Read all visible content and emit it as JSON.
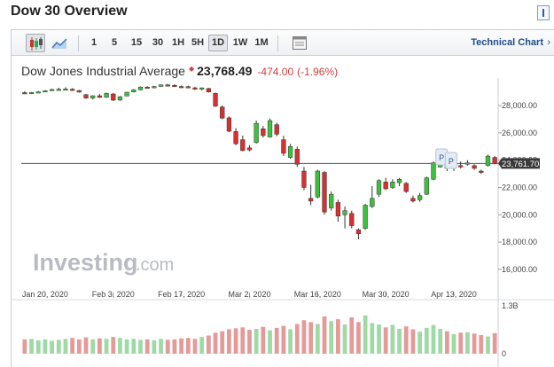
{
  "header": {
    "title": "Dow 30 Overview"
  },
  "toolbar": {
    "intervals": [
      "1",
      "5",
      "15",
      "30",
      "1H",
      "5H",
      "1D",
      "1W",
      "1M"
    ],
    "active_interval": "1D",
    "link_label": "Technical Chart"
  },
  "quote": {
    "name": "Dow Jones Industrial Average",
    "price": "23,768.49",
    "change": "-474.00",
    "change_pct": "(-1.96%)"
  },
  "watermark": {
    "brand": "Investing",
    "suffix": ".com"
  },
  "current_price_label": "23,761.70",
  "markers": [
    "P",
    "P"
  ],
  "colors": {
    "up": "#3cc13c",
    "down": "#d83030",
    "vol_up": "#9fd9a6",
    "vol_down": "#e39a98",
    "price_tag": "#3a3a3a",
    "accent": "#1d4d8b"
  },
  "chart_data": {
    "type": "candlestick",
    "y_ticks": [
      28000,
      26000,
      24000,
      22000,
      20000,
      18000,
      16000
    ],
    "y_tick_labels": [
      "28,000.00",
      "26,000.00",
      "24,000.00",
      "22,000.00",
      "20,000.00",
      "18,000.00",
      "16,000.00"
    ],
    "ylim": [
      14300,
      29500
    ],
    "x_tick_labels": [
      "Jan 20, 2020",
      "Feb 3, 2020",
      "Feb 17, 2020",
      "Mar 2, 2020",
      "Mar 16, 2020",
      "Mar 30, 2020",
      "Apr 13, 2020"
    ],
    "x_tick_index": [
      3,
      13,
      23,
      33,
      43,
      53,
      63
    ],
    "current_value": 23761.7,
    "volume_axis_labels": [
      "1.3B",
      "0"
    ],
    "volume_max": 1300000000,
    "candles": [
      {
        "o": 28950,
        "h": 29050,
        "l": 28880,
        "c": 28930
      },
      {
        "o": 28900,
        "h": 29000,
        "l": 28860,
        "c": 28960
      },
      {
        "o": 28980,
        "h": 29070,
        "l": 28930,
        "c": 29010
      },
      {
        "o": 29050,
        "h": 29130,
        "l": 29000,
        "c": 29090
      },
      {
        "o": 29150,
        "h": 29240,
        "l": 29110,
        "c": 29180
      },
      {
        "o": 29180,
        "h": 29300,
        "l": 29140,
        "c": 29200
      },
      {
        "o": 29200,
        "h": 29340,
        "l": 29150,
        "c": 29220
      },
      {
        "o": 29200,
        "h": 29280,
        "l": 29080,
        "c": 29120
      },
      {
        "o": 29100,
        "h": 29150,
        "l": 28950,
        "c": 28990
      },
      {
        "o": 28800,
        "h": 28850,
        "l": 28500,
        "c": 28550
      },
      {
        "o": 28550,
        "h": 28750,
        "l": 28450,
        "c": 28720
      },
      {
        "o": 28720,
        "h": 28840,
        "l": 28560,
        "c": 28600
      },
      {
        "o": 28600,
        "h": 28950,
        "l": 28580,
        "c": 28900
      },
      {
        "o": 28850,
        "h": 28920,
        "l": 28330,
        "c": 28400
      },
      {
        "o": 28400,
        "h": 28700,
        "l": 28350,
        "c": 28650
      },
      {
        "o": 28700,
        "h": 29000,
        "l": 28680,
        "c": 28980
      },
      {
        "o": 29000,
        "h": 29200,
        "l": 28960,
        "c": 29150
      },
      {
        "o": 29150,
        "h": 29400,
        "l": 29120,
        "c": 29360
      },
      {
        "o": 29350,
        "h": 29420,
        "l": 29250,
        "c": 29290
      },
      {
        "o": 29300,
        "h": 29450,
        "l": 29260,
        "c": 29400
      },
      {
        "o": 29400,
        "h": 29550,
        "l": 29380,
        "c": 29520
      },
      {
        "o": 29520,
        "h": 29590,
        "l": 29440,
        "c": 29480
      },
      {
        "o": 29480,
        "h": 29560,
        "l": 29380,
        "c": 29420
      },
      {
        "o": 29400,
        "h": 29480,
        "l": 29300,
        "c": 29390
      },
      {
        "o": 29390,
        "h": 29460,
        "l": 29280,
        "c": 29350
      },
      {
        "o": 29300,
        "h": 29380,
        "l": 29150,
        "c": 29200
      },
      {
        "o": 29200,
        "h": 29330,
        "l": 29120,
        "c": 29300
      },
      {
        "o": 29250,
        "h": 29300,
        "l": 28950,
        "c": 29000
      },
      {
        "o": 28900,
        "h": 28950,
        "l": 27900,
        "c": 27950
      },
      {
        "o": 27900,
        "h": 28000,
        "l": 27000,
        "c": 27080
      },
      {
        "o": 27100,
        "h": 27200,
        "l": 26050,
        "c": 26120
      },
      {
        "o": 26100,
        "h": 26350,
        "l": 25100,
        "c": 25200
      },
      {
        "o": 25500,
        "h": 25800,
        "l": 24650,
        "c": 24700
      },
      {
        "o": 24900,
        "h": 25100,
        "l": 24650,
        "c": 24750
      },
      {
        "o": 25300,
        "h": 26900,
        "l": 25200,
        "c": 26700
      },
      {
        "o": 26300,
        "h": 26500,
        "l": 25650,
        "c": 25800
      },
      {
        "o": 25700,
        "h": 27050,
        "l": 25650,
        "c": 26900
      },
      {
        "o": 26600,
        "h": 26750,
        "l": 25750,
        "c": 25900
      },
      {
        "o": 25500,
        "h": 25800,
        "l": 24300,
        "c": 24500
      },
      {
        "o": 24200,
        "h": 25200,
        "l": 24100,
        "c": 25000
      },
      {
        "o": 24800,
        "h": 25000,
        "l": 23500,
        "c": 23700
      },
      {
        "o": 23200,
        "h": 23500,
        "l": 21800,
        "c": 22000
      },
      {
        "o": 21200,
        "h": 22200,
        "l": 20700,
        "c": 21000
      },
      {
        "o": 21300,
        "h": 23300,
        "l": 21200,
        "c": 23200
      },
      {
        "o": 23100,
        "h": 23200,
        "l": 20000,
        "c": 20200
      },
      {
        "o": 20500,
        "h": 21700,
        "l": 20300,
        "c": 21500
      },
      {
        "o": 20900,
        "h": 21100,
        "l": 19500,
        "c": 19900
      },
      {
        "o": 20000,
        "h": 20600,
        "l": 19000,
        "c": 20300
      },
      {
        "o": 20100,
        "h": 20300,
        "l": 19000,
        "c": 19200
      },
      {
        "o": 18900,
        "h": 19000,
        "l": 18200,
        "c": 18600
      },
      {
        "o": 19000,
        "h": 20800,
        "l": 18900,
        "c": 20700
      },
      {
        "o": 20600,
        "h": 22100,
        "l": 20500,
        "c": 21200
      },
      {
        "o": 21500,
        "h": 22600,
        "l": 21300,
        "c": 22500
      },
      {
        "o": 22400,
        "h": 22700,
        "l": 21800,
        "c": 21900
      },
      {
        "o": 22000,
        "h": 22600,
        "l": 21900,
        "c": 22400
      },
      {
        "o": 22350,
        "h": 22700,
        "l": 22100,
        "c": 22600
      },
      {
        "o": 22300,
        "h": 22400,
        "l": 21600,
        "c": 21700
      },
      {
        "o": 21200,
        "h": 21400,
        "l": 20900,
        "c": 21000
      },
      {
        "o": 21100,
        "h": 21600,
        "l": 20950,
        "c": 21400
      },
      {
        "o": 21500,
        "h": 22800,
        "l": 21450,
        "c": 22700
      },
      {
        "o": 22600,
        "h": 23900,
        "l": 22550,
        "c": 23800
      },
      {
        "o": 23500,
        "h": 24700,
        "l": 23450,
        "c": 24600
      },
      {
        "o": 23900,
        "h": 24100,
        "l": 23200,
        "c": 23400
      },
      {
        "o": 23400,
        "h": 23800,
        "l": 23200,
        "c": 23700
      },
      {
        "o": 23600,
        "h": 23900,
        "l": 23400,
        "c": 23500
      },
      {
        "o": 23700,
        "h": 24000,
        "l": 23600,
        "c": 23800
      },
      {
        "o": 23600,
        "h": 23700,
        "l": 23300,
        "c": 23400
      },
      {
        "o": 23200,
        "h": 23300,
        "l": 23000,
        "c": 23100
      },
      {
        "o": 23600,
        "h": 24400,
        "l": 23550,
        "c": 24300
      },
      {
        "o": 24200,
        "h": 24300,
        "l": 23700,
        "c": 23760
      }
    ],
    "volume_fraction": [
      0.3,
      0.31,
      0.28,
      0.3,
      0.27,
      0.29,
      0.31,
      0.33,
      0.3,
      0.34,
      0.3,
      0.32,
      0.31,
      0.35,
      0.33,
      0.3,
      0.31,
      0.29,
      0.3,
      0.28,
      0.31,
      0.29,
      0.3,
      0.32,
      0.33,
      0.31,
      0.35,
      0.38,
      0.44,
      0.47,
      0.51,
      0.53,
      0.55,
      0.5,
      0.52,
      0.56,
      0.49,
      0.54,
      0.58,
      0.51,
      0.62,
      0.7,
      0.66,
      0.62,
      0.78,
      0.68,
      0.72,
      0.61,
      0.76,
      0.66,
      0.8,
      0.64,
      0.61,
      0.55,
      0.6,
      0.52,
      0.57,
      0.51,
      0.46,
      0.54,
      0.6,
      0.52,
      0.47,
      0.41,
      0.44,
      0.45,
      0.42,
      0.39,
      0.36,
      0.43
    ]
  }
}
